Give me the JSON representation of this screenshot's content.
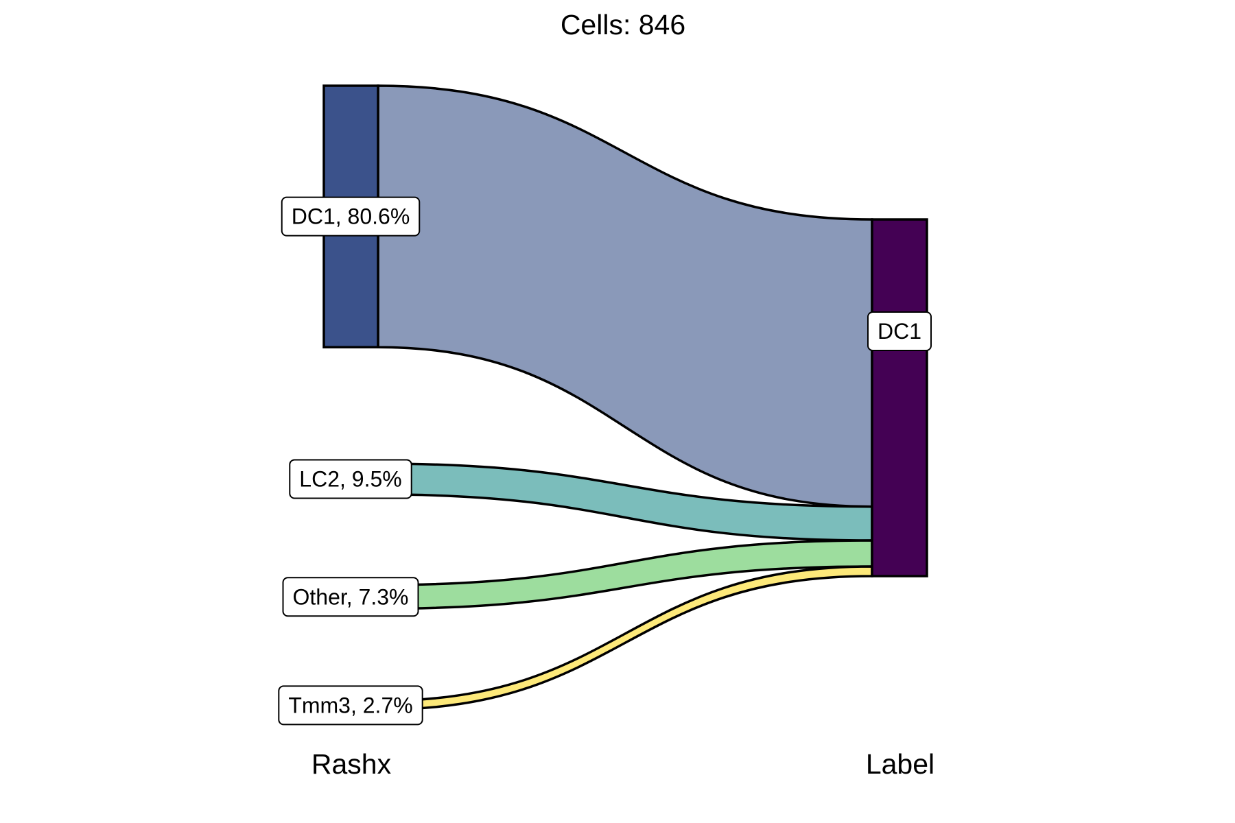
{
  "chart_data": {
    "type": "sankey",
    "title": "Cells:  846",
    "axes": [
      "Rashx",
      "Label"
    ],
    "source_nodes": [
      {
        "name": "DC1",
        "label": "DC1, 80.6%",
        "percent": 80.6,
        "color": "#3b528b",
        "flow_color": "#8a99b9"
      },
      {
        "name": "LC2",
        "label": "LC2, 9.5%",
        "percent": 9.5,
        "color": "#7bbdbb",
        "flow_color": "#7bbdbb"
      },
      {
        "name": "Other",
        "label": "Other, 7.3%",
        "percent": 7.3,
        "color": "#9ddd9e",
        "flow_color": "#9ddd9e"
      },
      {
        "name": "Tmm3",
        "label": "Tmm3, 2.7%",
        "percent": 2.7,
        "color": "#fde97a",
        "flow_color": "#fde97a"
      }
    ],
    "target_nodes": [
      {
        "name": "DC1",
        "label": "DC1",
        "percent": 100,
        "color": "#440154"
      }
    ],
    "flows": [
      {
        "from": "DC1",
        "to": "DC1",
        "percent": 80.6
      },
      {
        "from": "LC2",
        "to": "DC1",
        "percent": 9.5
      },
      {
        "from": "Other",
        "to": "DC1",
        "percent": 7.3
      },
      {
        "from": "Tmm3",
        "to": "DC1",
        "percent": 2.7
      }
    ]
  }
}
